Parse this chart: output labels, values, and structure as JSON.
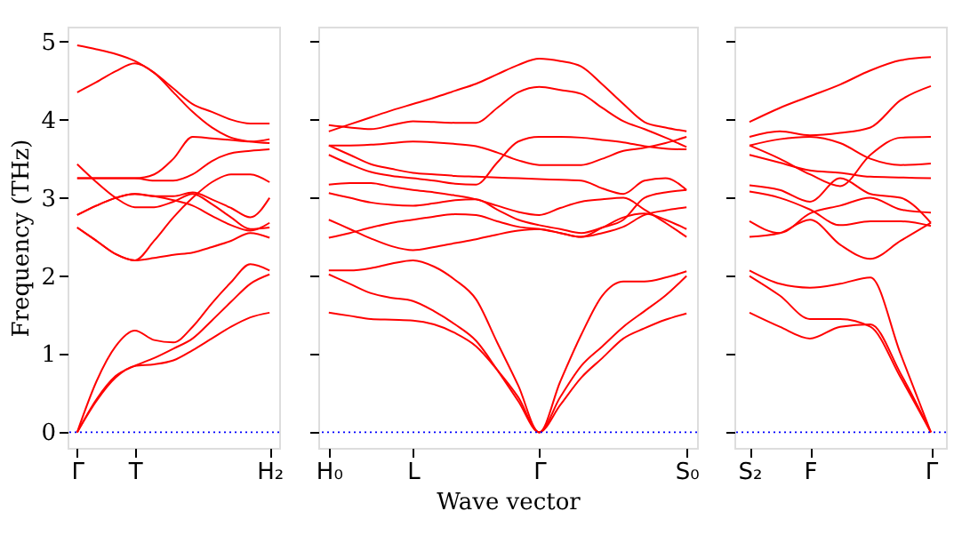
{
  "chart_data": [
    {
      "type": "line",
      "ylabel": "Frequency (THz)",
      "ylim": [
        -0.2,
        5.19
      ],
      "yticks": [
        0,
        1,
        2,
        3,
        4,
        5
      ],
      "grid": false,
      "legend": false,
      "line_style": "solid",
      "marker": "none",
      "ref_lines": [
        {
          "axis": "y",
          "value": 0,
          "color": "#0000ff",
          "line_style": "dotted"
        }
      ],
      "categories": [
        "Γ",
        null,
        null,
        "T",
        null,
        null,
        null,
        null,
        null,
        null,
        "H₂"
      ],
      "series": [
        {
          "color": "#ff0000",
          "values": [
            0,
            0.4,
            0.7,
            0.85,
            0.87,
            0.92,
            1.05,
            1.2,
            1.35,
            1.47,
            1.53
          ]
        },
        {
          "color": "#ff0000",
          "values": [
            0,
            0.42,
            0.72,
            0.85,
            0.95,
            1.07,
            1.2,
            1.43,
            1.67,
            1.9,
            2.02
          ]
        },
        {
          "color": "#ff0000",
          "values": [
            0,
            0.65,
            1.1,
            1.3,
            1.18,
            1.15,
            1.35,
            1.65,
            1.92,
            2.15,
            2.07
          ]
        },
        {
          "color": "#ff0000",
          "values": [
            2.62,
            2.45,
            2.28,
            2.2,
            2.23,
            2.27,
            2.3,
            2.37,
            2.45,
            2.55,
            2.49
          ]
        },
        {
          "color": "#ff0000",
          "values": [
            2.62,
            2.45,
            2.28,
            2.2,
            2.45,
            2.75,
            3.0,
            3.2,
            3.3,
            3.3,
            3.2
          ]
        },
        {
          "color": "#ff0000",
          "values": [
            2.78,
            2.9,
            3.0,
            3.05,
            3.02,
            2.97,
            2.9,
            2.77,
            2.65,
            2.58,
            2.68
          ]
        },
        {
          "color": "#ff0000",
          "values": [
            2.78,
            2.9,
            3.0,
            3.05,
            3.02,
            3.02,
            3.07,
            2.98,
            2.87,
            2.75,
            3.0
          ]
        },
        {
          "color": "#ff0000",
          "values": [
            3.43,
            3.2,
            3.0,
            2.88,
            2.88,
            2.95,
            3.05,
            2.92,
            2.75,
            2.6,
            2.62
          ]
        },
        {
          "color": "#ff0000",
          "values": [
            3.25,
            3.25,
            3.25,
            3.25,
            3.22,
            3.22,
            3.3,
            3.47,
            3.57,
            3.6,
            3.62
          ]
        },
        {
          "color": "#ff0000",
          "values": [
            3.25,
            3.25,
            3.25,
            3.25,
            3.3,
            3.5,
            3.78,
            3.76,
            3.74,
            3.72,
            3.75
          ]
        },
        {
          "color": "#ff0000",
          "values": [
            4.35,
            4.48,
            4.62,
            4.72,
            4.6,
            4.35,
            4.1,
            3.9,
            3.77,
            3.72,
            3.7
          ]
        },
        {
          "color": "#ff0000",
          "values": [
            4.95,
            4.9,
            4.84,
            4.75,
            4.6,
            4.4,
            4.2,
            4.1,
            4.0,
            3.95,
            3.95
          ]
        }
      ]
    },
    {
      "type": "line",
      "xlabel": "Wave vector",
      "ylim": [
        -0.2,
        5.19
      ],
      "yticks": [
        0,
        1,
        2,
        3,
        4,
        5
      ],
      "tick_labels": "x",
      "grid": false,
      "legend": false,
      "line_style": "solid",
      "marker": "none",
      "ref_lines": [
        {
          "axis": "y",
          "value": 0,
          "color": "#0000ff",
          "line_style": "dotted"
        }
      ],
      "categories": [
        "H₀",
        null,
        null,
        null,
        "L",
        null,
        null,
        null,
        null,
        null,
        "Γ",
        null,
        null,
        null,
        null,
        null,
        null,
        "S₀"
      ],
      "series": [
        {
          "color": "#ff0000",
          "values": [
            1.53,
            1.49,
            1.45,
            1.44,
            1.43,
            1.38,
            1.27,
            1.1,
            0.8,
            0.45,
            0,
            0.35,
            0.7,
            0.95,
            1.2,
            1.33,
            1.44,
            1.52
          ]
        },
        {
          "color": "#ff0000",
          "values": [
            2.02,
            1.9,
            1.78,
            1.72,
            1.68,
            1.55,
            1.38,
            1.17,
            0.8,
            0.4,
            0,
            0.45,
            0.85,
            1.1,
            1.35,
            1.55,
            1.75,
            2.0
          ]
        },
        {
          "color": "#ff0000",
          "values": [
            2.07,
            2.07,
            2.1,
            2.16,
            2.2,
            2.12,
            1.95,
            1.7,
            1.15,
            0.6,
            0,
            0.65,
            1.25,
            1.75,
            1.93,
            1.93,
            1.98,
            2.06
          ]
        },
        {
          "color": "#ff0000",
          "values": [
            2.49,
            2.55,
            2.62,
            2.68,
            2.72,
            2.76,
            2.79,
            2.78,
            2.7,
            2.63,
            2.6,
            2.55,
            2.5,
            2.55,
            2.63,
            2.78,
            2.84,
            2.88
          ]
        },
        {
          "color": "#ff0000",
          "values": [
            2.72,
            2.6,
            2.48,
            2.38,
            2.33,
            2.37,
            2.42,
            2.47,
            2.53,
            2.58,
            2.6,
            2.55,
            2.5,
            2.62,
            2.75,
            2.8,
            2.72,
            2.6
          ]
        },
        {
          "color": "#ff0000",
          "values": [
            3.06,
            3.0,
            2.94,
            2.91,
            2.9,
            2.93,
            2.97,
            2.98,
            2.85,
            2.72,
            2.65,
            2.6,
            2.55,
            2.62,
            2.72,
            3.0,
            3.07,
            3.1
          ]
        },
        {
          "color": "#ff0000",
          "values": [
            3.17,
            3.19,
            3.19,
            3.14,
            3.1,
            3.07,
            3.03,
            2.98,
            2.9,
            2.82,
            2.78,
            2.87,
            2.95,
            2.98,
            3.0,
            2.85,
            2.68,
            2.5
          ]
        },
        {
          "color": "#ff0000",
          "values": [
            3.67,
            3.55,
            3.43,
            3.37,
            3.32,
            3.3,
            3.28,
            3.27,
            3.26,
            3.25,
            3.24,
            3.23,
            3.22,
            3.12,
            3.05,
            3.22,
            3.25,
            3.1
          ]
        },
        {
          "color": "#ff0000",
          "values": [
            3.55,
            3.43,
            3.33,
            3.28,
            3.25,
            3.22,
            3.18,
            3.17,
            3.45,
            3.72,
            3.78,
            3.78,
            3.77,
            3.74,
            3.71,
            3.66,
            3.63,
            3.62
          ]
        },
        {
          "color": "#ff0000",
          "values": [
            3.67,
            3.67,
            3.68,
            3.7,
            3.72,
            3.71,
            3.69,
            3.66,
            3.58,
            3.48,
            3.42,
            3.42,
            3.42,
            3.5,
            3.6,
            3.64,
            3.7,
            3.78
          ]
        },
        {
          "color": "#ff0000",
          "values": [
            3.93,
            3.9,
            3.88,
            3.93,
            3.98,
            3.97,
            3.96,
            3.96,
            4.15,
            4.35,
            4.42,
            4.38,
            4.33,
            4.15,
            3.98,
            3.88,
            3.77,
            3.65
          ]
        },
        {
          "color": "#ff0000",
          "values": [
            3.85,
            3.94,
            4.03,
            4.12,
            4.2,
            4.28,
            4.37,
            4.46,
            4.58,
            4.7,
            4.78,
            4.75,
            4.68,
            4.45,
            4.2,
            3.97,
            3.9,
            3.85
          ]
        }
      ]
    },
    {
      "type": "line",
      "ylim": [
        -0.2,
        5.19
      ],
      "yticks": [
        0,
        1,
        2,
        3,
        4,
        5
      ],
      "tick_labels": "x",
      "grid": false,
      "legend": false,
      "line_style": "solid",
      "marker": "none",
      "ref_lines": [
        {
          "axis": "y",
          "value": 0,
          "color": "#0000ff",
          "line_style": "dotted"
        }
      ],
      "categories": [
        "S₂",
        null,
        "F",
        null,
        null,
        null,
        "Γ"
      ],
      "series": [
        {
          "color": "#ff0000",
          "values": [
            1.53,
            1.35,
            1.2,
            1.35,
            1.38,
            0.75,
            0
          ]
        },
        {
          "color": "#ff0000",
          "values": [
            2.0,
            1.75,
            1.45,
            1.45,
            1.35,
            0.7,
            0
          ]
        },
        {
          "color": "#ff0000",
          "values": [
            2.07,
            1.9,
            1.85,
            1.9,
            1.98,
            1.0,
            0
          ]
        },
        {
          "color": "#ff0000",
          "values": [
            2.5,
            2.55,
            2.72,
            2.4,
            2.22,
            2.45,
            2.68
          ]
        },
        {
          "color": "#ff0000",
          "values": [
            2.7,
            2.55,
            2.8,
            2.9,
            3.0,
            2.85,
            2.81
          ]
        },
        {
          "color": "#ff0000",
          "values": [
            3.08,
            3.0,
            2.85,
            2.65,
            2.7,
            2.7,
            2.64
          ]
        },
        {
          "color": "#ff0000",
          "values": [
            3.16,
            3.1,
            2.95,
            3.25,
            3.05,
            3.0,
            2.68
          ]
        },
        {
          "color": "#ff0000",
          "values": [
            3.67,
            3.5,
            3.3,
            3.15,
            3.55,
            3.77,
            3.78
          ]
        },
        {
          "color": "#ff0000",
          "values": [
            3.55,
            3.45,
            3.35,
            3.32,
            3.27,
            3.26,
            3.25
          ]
        },
        {
          "color": "#ff0000",
          "values": [
            3.67,
            3.75,
            3.78,
            3.7,
            3.5,
            3.42,
            3.44
          ]
        },
        {
          "color": "#ff0000",
          "values": [
            3.78,
            3.85,
            3.8,
            3.83,
            3.9,
            4.25,
            4.43
          ]
        },
        {
          "color": "#ff0000",
          "values": [
            3.97,
            4.15,
            4.3,
            4.45,
            4.63,
            4.76,
            4.8
          ]
        }
      ]
    }
  ]
}
